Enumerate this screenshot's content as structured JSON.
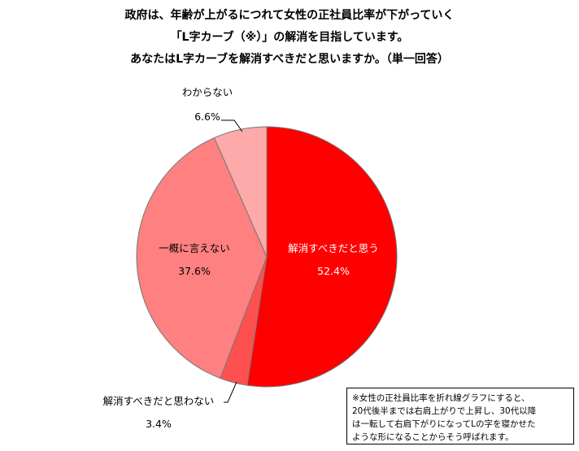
{
  "title_lines": [
    "政府は、年齢が上がるにつれて女性の正社員比率が下がっていく",
    "「L字カーブ（※）」の解消を目指しています。",
    "あなたはL字カーブを解消すべきだと思いますか。（単一回答）"
  ],
  "chart_data": {
    "type": "pie",
    "title": "",
    "slices": [
      {
        "label": "解消すべきだと思う",
        "value": 52.4,
        "value_label": "52.4%",
        "color": "#ff0000"
      },
      {
        "label": "解消すべきだと思わない",
        "value": 3.4,
        "value_label": "3.4%",
        "color": "#ff5050"
      },
      {
        "label": "一概に言えない",
        "value": 37.6,
        "value_label": "37.6%",
        "color": "#ff8080"
      },
      {
        "label": "わからない",
        "value": 6.6,
        "value_label": "6.6%",
        "color": "#ffaaaa"
      }
    ],
    "start_angle_deg": 0,
    "direction": "clockwise"
  },
  "note_lines": [
    "※女性の正社員比率を折れ線グラフにすると、",
    "20代後半までは右肩上がりで上昇し、30代以降",
    "は一転して右肩下がりになってLの字を寝かせた",
    "ような形になることからそう呼ばれます。"
  ]
}
